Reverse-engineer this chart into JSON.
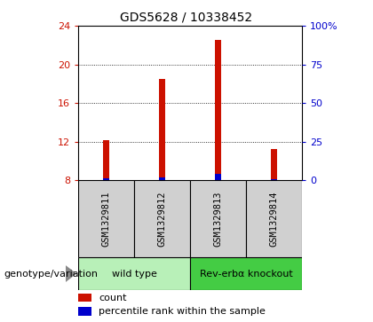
{
  "title": "GDS5628 / 10338452",
  "samples": [
    "GSM1329811",
    "GSM1329812",
    "GSM1329813",
    "GSM1329814"
  ],
  "red_values": [
    12.2,
    18.5,
    22.5,
    11.2
  ],
  "blue_values": [
    1.5,
    2.0,
    4.0,
    1.0
  ],
  "ylim_left": [
    8,
    24
  ],
  "ylim_right": [
    0,
    100
  ],
  "yticks_left": [
    8,
    12,
    16,
    20,
    24
  ],
  "yticks_right": [
    0,
    25,
    50,
    75,
    100
  ],
  "ytick_labels_right": [
    "0",
    "25",
    "50",
    "75",
    "100%"
  ],
  "groups": [
    {
      "label": "wild type",
      "samples": [
        0,
        1
      ],
      "color": "#b8f0b8"
    },
    {
      "label": "Rev-erbα knockout",
      "samples": [
        2,
        3
      ],
      "color": "#44cc44"
    }
  ],
  "bar_color_red": "#cc1100",
  "bar_color_blue": "#0000cc",
  "bar_width": 0.12,
  "left_axis_color": "#cc1100",
  "right_axis_color": "#0000cc",
  "grid_color": "black",
  "bg_label": "#d0d0d0",
  "legend_red_label": "count",
  "legend_blue_label": "percentile rank within the sample",
  "genotype_label": "genotype/variation"
}
